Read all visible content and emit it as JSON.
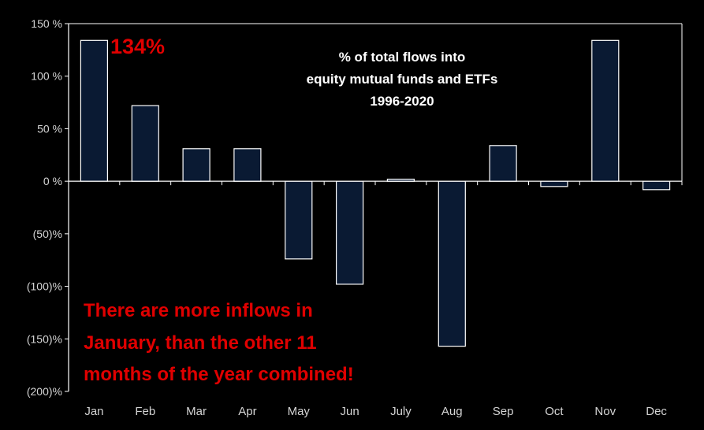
{
  "chart_data": {
    "type": "bar",
    "title_lines": [
      "% of total flows into",
      "equity mutual funds and ETFs",
      "1996-2020"
    ],
    "categories": [
      "Jan",
      "Feb",
      "Mar",
      "Apr",
      "May",
      "Jun",
      "July",
      "Aug",
      "Sep",
      "Oct",
      "Nov",
      "Dec"
    ],
    "values": [
      134,
      72,
      31,
      31,
      -74,
      -98,
      2,
      -157,
      34,
      -5,
      134,
      -8
    ],
    "ylim": [
      -200,
      150
    ],
    "y_ticks": [
      150,
      100,
      50,
      0,
      -50,
      -100,
      -150,
      -200
    ],
    "y_tick_labels": [
      "150 %",
      "100 %",
      "50 %",
      "0 %",
      "(50)%",
      "(100)%",
      "(150)%",
      "(200)%"
    ],
    "xlabel": "",
    "ylabel": "",
    "grid": false,
    "legend": "none",
    "bar_label": "134%",
    "annotation_lines": [
      "There are more inflows in",
      "January, than the other 11",
      "months of the year combined!"
    ],
    "colors": {
      "background": "#000000",
      "bar_fill": "#0a1a33",
      "bar_stroke": "#ffffff",
      "axis": "#ffffff",
      "text": "#ffffff",
      "tick_text": "#d4d4d4",
      "highlight": "#e00000"
    }
  }
}
